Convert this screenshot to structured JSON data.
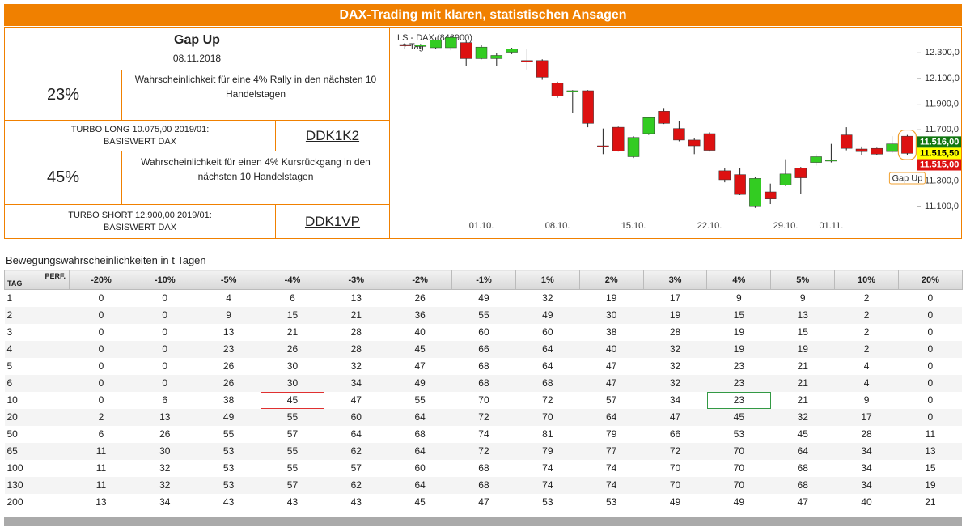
{
  "header": {
    "title": "DAX-Trading mit klaren, statistischen Ansagen"
  },
  "panel": {
    "signal": "Gap Up",
    "date": "08.11.2018",
    "long": {
      "probability": "23%",
      "text": "Wahrscheinlichkeit für eine 4% Rally in den nächsten 10 Handelstagen",
      "product_line1": "TURBO LONG 10.075,00 2019/01:",
      "product_line2": "BASISWERT DAX",
      "code": "DDK1K2"
    },
    "short": {
      "probability": "45%",
      "text": "Wahrscheinlichkeit für einen 4% Kursrückgang in den nächsten 10 Handelstagen",
      "product_line1": "TURBO SHORT 12.900,00 2019/01:",
      "product_line2": "BASISWERT DAX",
      "code": "DDK1VP"
    }
  },
  "chart_data": {
    "type": "candlestick",
    "legend": [
      "LS - DAX (846900)",
      "1 Tag"
    ],
    "categories": [
      null,
      null,
      null,
      null,
      null,
      "01.10.",
      null,
      null,
      null,
      null,
      "08.10.",
      null,
      null,
      null,
      null,
      "15.10.",
      null,
      null,
      null,
      null,
      "22.10.",
      null,
      null,
      null,
      null,
      "29.10.",
      null,
      null,
      "01.11.",
      null,
      null,
      null,
      null,
      null
    ],
    "open": [
      12365,
      12350,
      12340,
      12340,
      12380,
      12255,
      12255,
      12305,
      12240,
      12240,
      12065,
      11995,
      12005,
      11575,
      11720,
      11490,
      11670,
      11845,
      11710,
      11620,
      11670,
      11380,
      11350,
      11100,
      11215,
      11270,
      11400,
      11445,
      11460,
      11660,
      11550,
      11555,
      11530,
      11650
    ],
    "high": [
      12370,
      12370,
      12420,
      12430,
      12400,
      12360,
      12300,
      12340,
      12330,
      12250,
      12075,
      12010,
      12010,
      11710,
      11725,
      11650,
      11800,
      11870,
      11770,
      11635,
      11680,
      11400,
      11400,
      11330,
      11280,
      11470,
      11410,
      11510,
      11590,
      11720,
      11570,
      11560,
      11650,
      11660
    ],
    "low": [
      12350,
      12330,
      12330,
      12320,
      12200,
      12250,
      12200,
      12290,
      12170,
      12090,
      11950,
      11830,
      11720,
      11510,
      11530,
      11480,
      11660,
      11745,
      11610,
      11510,
      11530,
      11290,
      11190,
      11090,
      11120,
      11260,
      11200,
      11420,
      11445,
      11540,
      11500,
      11505,
      11520,
      11505
    ],
    "close": [
      12355,
      12360,
      12400,
      12420,
      12255,
      12345,
      12280,
      12330,
      12235,
      12110,
      11965,
      12005,
      11750,
      11570,
      11535,
      11640,
      11795,
      11750,
      11620,
      11575,
      11540,
      11310,
      11195,
      11320,
      11160,
      11355,
      11325,
      11490,
      11465,
      11555,
      11530,
      11510,
      11590,
      11516
    ],
    "up_color": "#33cc22",
    "down_color": "#dd1111",
    "ylim": [
      10880,
      12460
    ],
    "yticks": [
      {
        "value": 11100,
        "label": "11.100,0"
      },
      {
        "value": 11300,
        "label": "11.300,0"
      },
      {
        "value": 11700,
        "label": "11.700,0"
      },
      {
        "value": 11900,
        "label": "11.900,0"
      },
      {
        "value": 12100,
        "label": "12.100,0"
      },
      {
        "value": 12300,
        "label": "12.300,0"
      }
    ],
    "price_labels": [
      {
        "value": 11516,
        "label": "11.516,00",
        "color": "#117711"
      },
      {
        "value": 11515.5,
        "label": "11.515,50",
        "color": "#ffff00"
      },
      {
        "value": 11515,
        "label": "11.515,00",
        "color": "#dd1111"
      }
    ],
    "annotation": "Gap Up",
    "annotation_color": "#f0a030"
  },
  "table": {
    "title": "Bewegungswahrscheinlichkeiten in t Tagen",
    "tag_label": "TAG",
    "perf_label": "PERF.",
    "columns": [
      "-20%",
      "-10%",
      "-5%",
      "-4%",
      "-3%",
      "-2%",
      "-1%",
      "1%",
      "2%",
      "3%",
      "4%",
      "5%",
      "10%",
      "20%"
    ],
    "rows": [
      [
        1,
        0,
        0,
        4,
        6,
        13,
        26,
        49,
        32,
        19,
        17,
        9,
        9,
        2,
        0
      ],
      [
        2,
        0,
        0,
        9,
        15,
        21,
        36,
        55,
        49,
        30,
        19,
        15,
        13,
        2,
        0
      ],
      [
        3,
        0,
        0,
        13,
        21,
        28,
        40,
        60,
        60,
        38,
        28,
        19,
        15,
        2,
        0
      ],
      [
        4,
        0,
        0,
        23,
        26,
        28,
        45,
        66,
        64,
        40,
        32,
        19,
        19,
        2,
        0
      ],
      [
        5,
        0,
        0,
        26,
        30,
        32,
        47,
        68,
        64,
        47,
        32,
        23,
        21,
        4,
        0
      ],
      [
        6,
        0,
        0,
        26,
        30,
        34,
        49,
        68,
        68,
        47,
        32,
        23,
        21,
        4,
        0
      ],
      [
        10,
        0,
        6,
        38,
        45,
        47,
        55,
        70,
        72,
        57,
        34,
        23,
        21,
        9,
        0
      ],
      [
        20,
        2,
        13,
        49,
        55,
        60,
        64,
        72,
        70,
        64,
        47,
        45,
        32,
        17,
        0
      ],
      [
        50,
        6,
        26,
        55,
        57,
        64,
        68,
        74,
        81,
        79,
        66,
        53,
        45,
        28,
        11
      ],
      [
        65,
        11,
        30,
        53,
        55,
        62,
        64,
        72,
        79,
        77,
        72,
        70,
        64,
        34,
        13
      ],
      [
        100,
        11,
        32,
        53,
        55,
        57,
        60,
        68,
        74,
        74,
        70,
        70,
        68,
        34,
        15
      ],
      [
        130,
        11,
        32,
        53,
        57,
        62,
        64,
        68,
        74,
        74,
        70,
        70,
        68,
        34,
        19
      ],
      [
        200,
        13,
        34,
        43,
        43,
        43,
        45,
        47,
        53,
        53,
        49,
        49,
        47,
        40,
        21
      ]
    ],
    "highlights": [
      {
        "row": 6,
        "col": 4,
        "color": "#e03030"
      },
      {
        "row": 6,
        "col": 11,
        "color": "#339944"
      }
    ]
  }
}
